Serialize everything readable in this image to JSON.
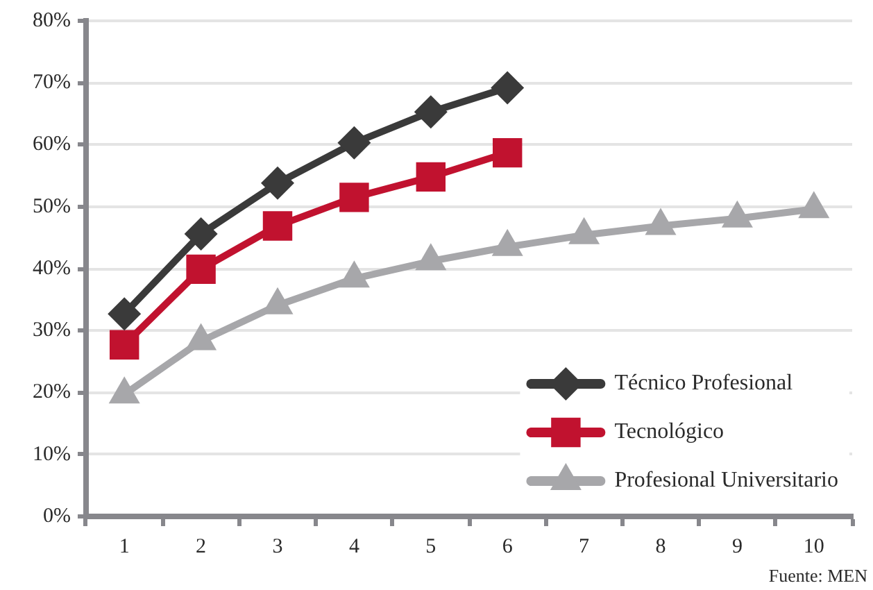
{
  "chart_data": {
    "type": "line",
    "categories": [
      "1",
      "2",
      "3",
      "4",
      "5",
      "6",
      "7",
      "8",
      "9",
      "10"
    ],
    "series": [
      {
        "name": "Técnico Profesional",
        "color": "#3a3a3a",
        "marker": "diamond",
        "values": [
          32.7,
          45.6,
          53.8,
          60.3,
          65.3,
          69.2,
          null,
          null,
          null,
          null
        ]
      },
      {
        "name": "Tecnológico",
        "color": "#c1122f",
        "marker": "square",
        "values": [
          27.7,
          39.9,
          46.9,
          51.5,
          54.8,
          58.7,
          null,
          null,
          null,
          null
        ]
      },
      {
        "name": "Profesional Universitario",
        "color": "#a7a7aa",
        "marker": "triangle",
        "values": [
          19.7,
          28.3,
          34.1,
          38.4,
          41.2,
          43.5,
          45.4,
          46.9,
          48.1,
          49.6
        ]
      }
    ],
    "ylim": [
      0,
      80
    ],
    "yticks": [
      {
        "value": 0,
        "label": "0%"
      },
      {
        "value": 10,
        "label": "10%"
      },
      {
        "value": 20,
        "label": "20%"
      },
      {
        "value": 30,
        "label": "30%"
      },
      {
        "value": 40,
        "label": "40%"
      },
      {
        "value": 50,
        "label": "50%"
      },
      {
        "value": 60,
        "label": "60%"
      },
      {
        "value": 70,
        "label": "70%"
      },
      {
        "value": 80,
        "label": "80%"
      }
    ],
    "grid": "y",
    "legend": "bottom right",
    "annotations": [
      "Fuente: MEN"
    ]
  }
}
